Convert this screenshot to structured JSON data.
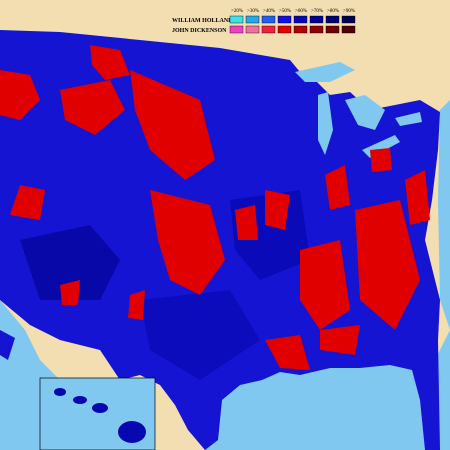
{
  "legend": {
    "thresholds": [
      ">20%",
      ">30%",
      ">40%",
      ">50%",
      ">60%",
      ">70%",
      ">80%",
      ">90%"
    ],
    "candidates": [
      {
        "name": "WILLIAM HOLLAND",
        "colors": [
          "#40e0e8",
          "#28a8e8",
          "#2060f0",
          "#1010e0",
          "#0808b0",
          "#000090",
          "#000070",
          "#000050"
        ]
      },
      {
        "name": "JOHN DICKENSON",
        "colors": [
          "#f040c0",
          "#f070a0",
          "#f02040",
          "#e00000",
          "#b00000",
          "#900000",
          "#700000",
          "#500000"
        ]
      }
    ]
  }
}
